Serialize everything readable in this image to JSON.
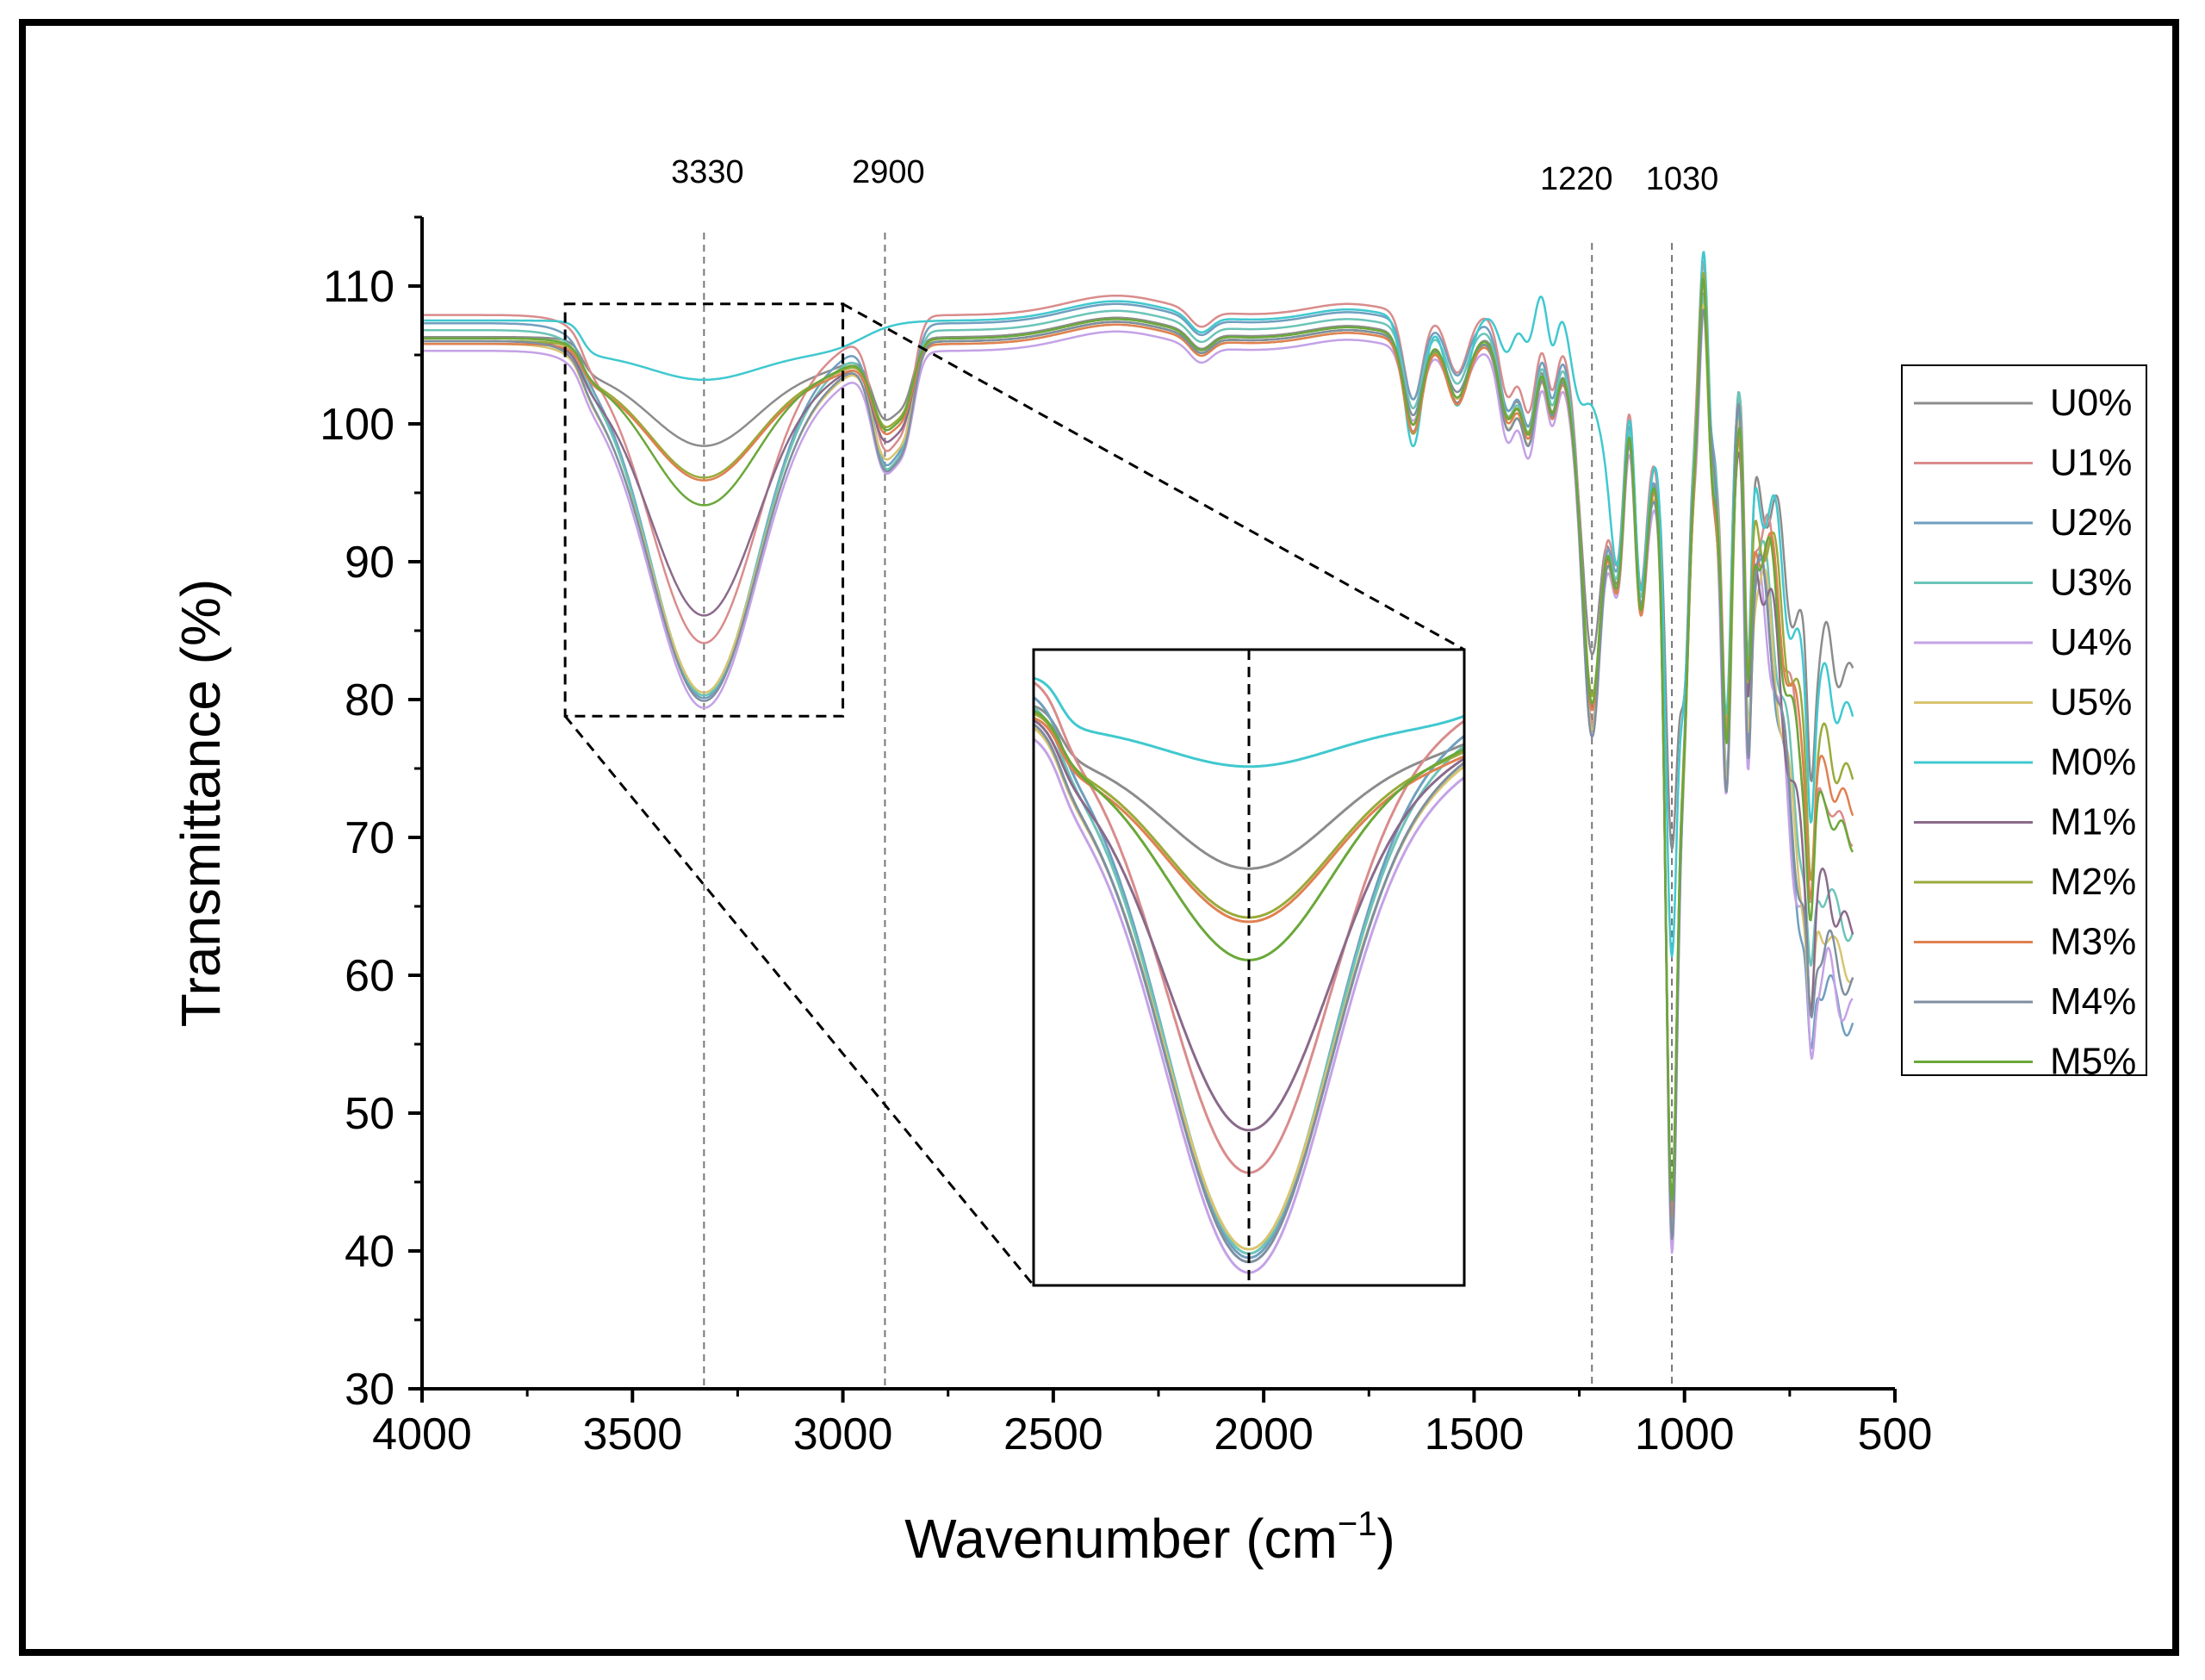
{
  "chart_data": {
    "type": "line",
    "title": "",
    "xlabel": "Wavenumber (cm",
    "xlabel_sup": "−1",
    "xlabel_close": ")",
    "ylabel": "Transmittance (%)",
    "xlim": [
      4000,
      500
    ],
    "ylim": [
      30,
      115
    ],
    "xticks": [
      4000,
      3500,
      3000,
      2500,
      2000,
      1500,
      1000,
      500
    ],
    "yticks": [
      30,
      40,
      50,
      60,
      70,
      80,
      90,
      100,
      110
    ],
    "peak_lines": [
      {
        "x": 3330,
        "label": "3330"
      },
      {
        "x": 2900,
        "label": "2900"
      },
      {
        "x": 1220,
        "label": "1220"
      },
      {
        "x": 1030,
        "label": "1030"
      }
    ],
    "legend_position": "right",
    "inset": {
      "x_range": [
        3660,
        3000
      ],
      "y_range": [
        78.8,
        108.7
      ]
    },
    "series": [
      {
        "name": "U0%",
        "color": "#8c8c8c",
        "baseline": 106.3,
        "v3330": 98.3,
        "v2900": 98.5,
        "v1220": 83.0,
        "v1030": 66.0,
        "end": 79.5,
        "offset": 0.8
      },
      {
        "name": "U1%",
        "color": "#d98c8c",
        "baseline": 107.9,
        "v3330": 84.0,
        "v2900": 96.5,
        "v1220": 78.0,
        "v1030": 39.0,
        "end": 68.0,
        "offset": 0.2
      },
      {
        "name": "U2%",
        "color": "#6f9fbf",
        "baseline": 107.3,
        "v3330": 80.0,
        "v2900": 95.5,
        "v1220": 77.5,
        "v1030": 37.5,
        "end": 54.0,
        "offset": -0.2
      },
      {
        "name": "U3%",
        "color": "#6cc4b8",
        "baseline": 106.8,
        "v3330": 80.2,
        "v2900": 95.2,
        "v1220": 77.5,
        "v1030": 37.0,
        "end": 61.0,
        "offset": -0.1
      },
      {
        "name": "U4%",
        "color": "#c4a2e6",
        "baseline": 105.3,
        "v3330": 79.3,
        "v2900": 94.8,
        "v1220": 77.0,
        "v1030": 36.5,
        "end": 55.0,
        "offset": -0.5
      },
      {
        "name": "U5%",
        "color": "#d8c470",
        "baseline": 105.8,
        "v3330": 80.4,
        "v2900": 95.8,
        "v1220": 77.5,
        "v1030": 38.0,
        "end": 58.0,
        "offset": 0.0
      },
      {
        "name": "M0%",
        "color": "#40c8cf",
        "baseline": 107.5,
        "v3330": 103.1,
        "v2900": 104.9,
        "v1220": 100.5,
        "v1030": 58.0,
        "end": 76.5,
        "offset": 2.2
      },
      {
        "name": "M1%",
        "color": "#8a6a8a",
        "baseline": 106.0,
        "v3330": 86.0,
        "v2900": 97.0,
        "v1220": 79.0,
        "v1030": 39.0,
        "end": 61.0,
        "offset": 0.5
      },
      {
        "name": "M2%",
        "color": "#9aaa3a",
        "baseline": 106.0,
        "v3330": 96.0,
        "v2900": 98.0,
        "v1220": 80.0,
        "v1030": 40.0,
        "end": 72.0,
        "offset": 0.6
      },
      {
        "name": "M3%",
        "color": "#e08050",
        "baseline": 105.8,
        "v3330": 95.8,
        "v2900": 97.5,
        "v1220": 79.0,
        "v1030": 38.5,
        "end": 70.0,
        "offset": 0.4
      },
      {
        "name": "M4%",
        "color": "#7f8fa0",
        "baseline": 106.0,
        "v3330": 79.8,
        "v2900": 95.0,
        "v1220": 77.0,
        "v1030": 37.0,
        "end": 57.0,
        "offset": -0.3
      },
      {
        "name": "M5%",
        "color": "#6aa83a",
        "baseline": 106.2,
        "v3330": 94.0,
        "v2900": 97.8,
        "v1220": 79.5,
        "v1030": 39.5,
        "end": 67.5,
        "offset": 0.3
      }
    ]
  }
}
